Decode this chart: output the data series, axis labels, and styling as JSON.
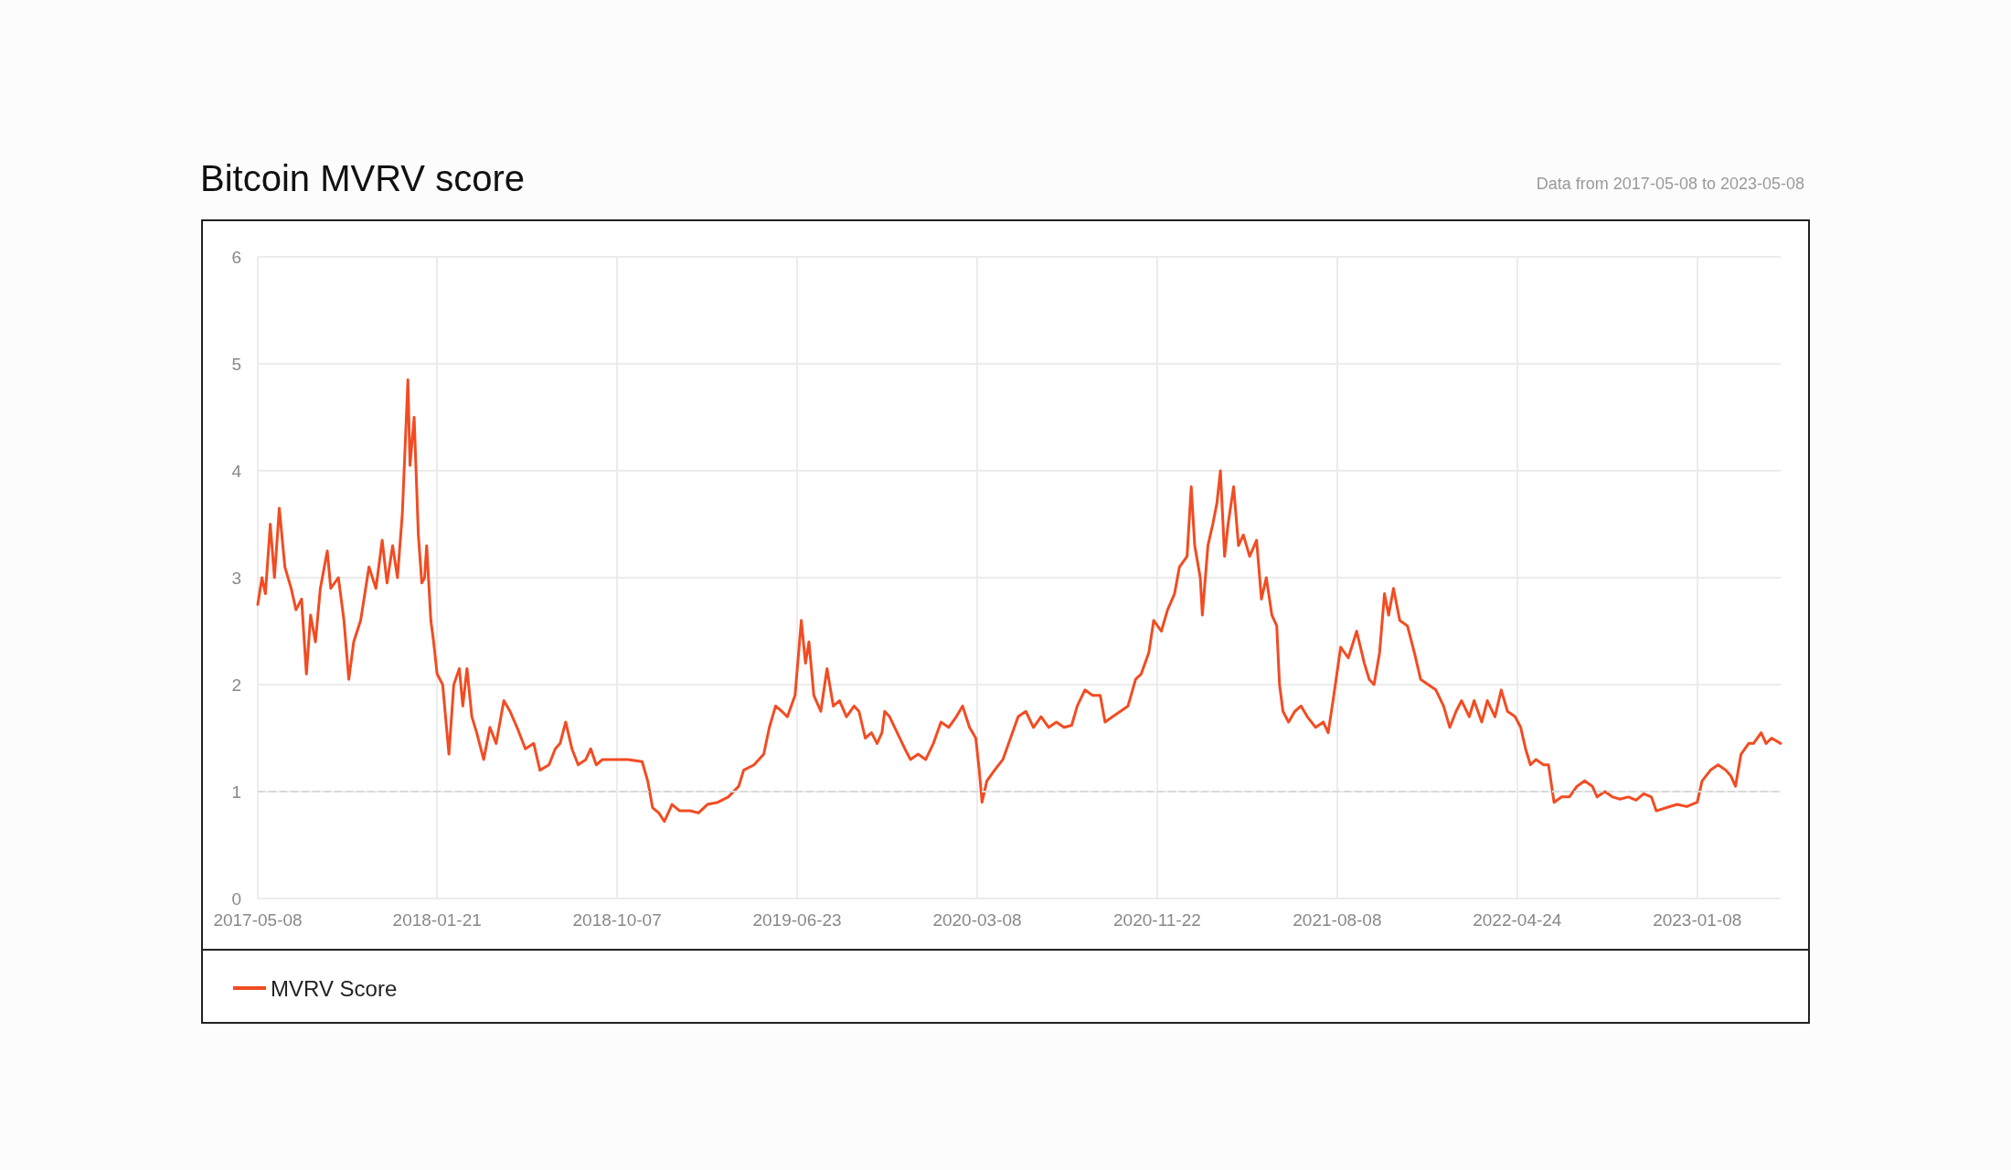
{
  "chart_data": {
    "type": "line",
    "title": "Bitcoin MVRV score",
    "annotations": [
      "Data from 2017-05-08 to 2023-05-08"
    ],
    "x": [
      "2017-05-08",
      "2017-05-14",
      "2017-05-19",
      "2017-05-26",
      "2017-06-01",
      "2017-06-08",
      "2017-06-16",
      "2017-06-25",
      "2017-07-02",
      "2017-07-10",
      "2017-07-17",
      "2017-07-23",
      "2017-07-30",
      "2017-08-06",
      "2017-08-16",
      "2017-08-21",
      "2017-09-01",
      "2017-09-09",
      "2017-09-16",
      "2017-09-23",
      "2017-10-03",
      "2017-10-15",
      "2017-10-25",
      "2017-11-03",
      "2017-11-10",
      "2017-11-18",
      "2017-11-25",
      "2017-12-02",
      "2017-12-10",
      "2017-12-13",
      "2017-12-19",
      "2017-12-25",
      "2017-12-30",
      "2018-01-03",
      "2018-01-06",
      "2018-01-12",
      "2018-01-16",
      "2018-01-21",
      "2018-01-29",
      "2018-02-07",
      "2018-02-14",
      "2018-02-22",
      "2018-02-27",
      "2018-03-05",
      "2018-03-12",
      "2018-03-19",
      "2018-03-29",
      "2018-04-07",
      "2018-04-16",
      "2018-04-27",
      "2018-05-06",
      "2018-05-16",
      "2018-05-28",
      "2018-06-09",
      "2018-06-18",
      "2018-07-01",
      "2018-07-10",
      "2018-07-17",
      "2018-07-25",
      "2018-08-03",
      "2018-08-12",
      "2018-08-23",
      "2018-08-30",
      "2018-09-07",
      "2018-09-16",
      "2018-10-01",
      "2018-10-23",
      "2018-11-12",
      "2018-11-20",
      "2018-11-27",
      "2018-12-06",
      "2018-12-14",
      "2018-12-25",
      "2019-01-05",
      "2019-01-20",
      "2019-02-01",
      "2019-02-14",
      "2019-03-01",
      "2019-03-16",
      "2019-03-31",
      "2019-04-07",
      "2019-04-22",
      "2019-05-06",
      "2019-05-14",
      "2019-05-23",
      "2019-06-01",
      "2019-06-09",
      "2019-06-20",
      "2019-06-29",
      "2019-07-05",
      "2019-07-10",
      "2019-07-17",
      "2019-07-27",
      "2019-08-05",
      "2019-08-14",
      "2019-08-23",
      "2019-09-02",
      "2019-09-13",
      "2019-09-20",
      "2019-09-29",
      "2019-10-08",
      "2019-10-16",
      "2019-10-23",
      "2019-10-27",
      "2019-11-03",
      "2019-11-14",
      "2019-11-25",
      "2019-12-03",
      "2019-12-14",
      "2019-12-25",
      "2020-01-05",
      "2020-01-16",
      "2020-01-27",
      "2020-02-07",
      "2020-02-16",
      "2020-02-26",
      "2020-03-06",
      "2020-03-11",
      "2020-03-15",
      "2020-03-22",
      "2020-04-02",
      "2020-04-14",
      "2020-04-25",
      "2020-05-06",
      "2020-05-17",
      "2020-05-28",
      "2020-06-08",
      "2020-06-19",
      "2020-06-30",
      "2020-07-11",
      "2020-07-22",
      "2020-07-30",
      "2020-08-10",
      "2020-08-21",
      "2020-09-01",
      "2020-09-08",
      "2020-09-19",
      "2020-09-30",
      "2020-10-11",
      "2020-10-22",
      "2020-10-30",
      "2020-11-10",
      "2020-11-17",
      "2020-11-28",
      "2020-12-07",
      "2020-12-17",
      "2020-12-24",
      "2021-01-04",
      "2021-01-10",
      "2021-01-15",
      "2021-01-23",
      "2021-01-26",
      "2021-02-03",
      "2021-02-10",
      "2021-02-16",
      "2021-02-21",
      "2021-02-27",
      "2021-03-04",
      "2021-03-12",
      "2021-03-19",
      "2021-03-26",
      "2021-04-04",
      "2021-04-14",
      "2021-04-21",
      "2021-04-28",
      "2021-05-06",
      "2021-05-13",
      "2021-05-17",
      "2021-05-22",
      "2021-05-30",
      "2021-06-08",
      "2021-06-17",
      "2021-06-26",
      "2021-07-08",
      "2021-07-19",
      "2021-07-26",
      "2021-08-02",
      "2021-08-13",
      "2021-08-24",
      "2021-09-05",
      "2021-09-16",
      "2021-09-23",
      "2021-09-30",
      "2021-10-08",
      "2021-10-15",
      "2021-10-21",
      "2021-10-28",
      "2021-11-06",
      "2021-11-17",
      "2021-11-27",
      "2021-12-06",
      "2021-12-17",
      "2021-12-28",
      "2022-01-08",
      "2022-01-17",
      "2022-01-26",
      "2022-02-03",
      "2022-02-14",
      "2022-02-21",
      "2022-03-04",
      "2022-03-12",
      "2022-03-23",
      "2022-04-01",
      "2022-04-10",
      "2022-04-21",
      "2022-04-29",
      "2022-05-06",
      "2022-05-13",
      "2022-05-21",
      "2022-06-01",
      "2022-06-08",
      "2022-06-16",
      "2022-06-27",
      "2022-07-08",
      "2022-07-19",
      "2022-07-30",
      "2022-08-10",
      "2022-08-17",
      "2022-08-28",
      "2022-09-08",
      "2022-09-19",
      "2022-10-01",
      "2022-10-12",
      "2022-10-23",
      "2022-11-03",
      "2022-11-10",
      "2022-11-25",
      "2022-12-10",
      "2022-12-24",
      "2023-01-08",
      "2023-01-15",
      "2023-01-27",
      "2023-02-07",
      "2023-02-18",
      "2023-02-25",
      "2023-03-04",
      "2023-03-12",
      "2023-03-23",
      "2023-03-30",
      "2023-04-10",
      "2023-04-17",
      "2023-04-25",
      "2023-05-08"
    ],
    "series": [
      {
        "name": "MVRV Score",
        "color": "#f24c22",
        "values": [
          2.75,
          3.0,
          2.85,
          3.5,
          3.0,
          3.65,
          3.1,
          2.9,
          2.7,
          2.8,
          2.1,
          2.65,
          2.4,
          2.9,
          3.25,
          2.9,
          3.0,
          2.6,
          2.05,
          2.4,
          2.6,
          3.1,
          2.9,
          3.35,
          2.95,
          3.3,
          3.0,
          3.6,
          4.85,
          4.05,
          4.5,
          3.4,
          2.95,
          3.0,
          3.3,
          2.6,
          2.4,
          2.1,
          2.0,
          1.35,
          2.0,
          2.15,
          1.8,
          2.15,
          1.7,
          1.55,
          1.3,
          1.6,
          1.45,
          1.85,
          1.75,
          1.6,
          1.4,
          1.45,
          1.2,
          1.25,
          1.4,
          1.45,
          1.65,
          1.4,
          1.25,
          1.3,
          1.4,
          1.25,
          1.3,
          1.3,
          1.3,
          1.28,
          1.1,
          0.85,
          0.8,
          0.72,
          0.88,
          0.82,
          0.82,
          0.8,
          0.88,
          0.9,
          0.95,
          1.05,
          1.2,
          1.25,
          1.35,
          1.6,
          1.8,
          1.75,
          1.7,
          1.9,
          2.6,
          2.2,
          2.4,
          1.9,
          1.75,
          2.15,
          1.8,
          1.85,
          1.7,
          1.8,
          1.75,
          1.5,
          1.55,
          1.45,
          1.55,
          1.75,
          1.7,
          1.55,
          1.4,
          1.3,
          1.35,
          1.3,
          1.45,
          1.65,
          1.6,
          1.7,
          1.8,
          1.6,
          1.5,
          1.2,
          0.9,
          1.1,
          1.2,
          1.3,
          1.5,
          1.7,
          1.75,
          1.6,
          1.7,
          1.6,
          1.65,
          1.6,
          1.62,
          1.8,
          1.95,
          1.9,
          1.9,
          1.65,
          1.7,
          1.75,
          1.8,
          2.05,
          2.1,
          2.3,
          2.6,
          2.5,
          2.7,
          2.85,
          3.1,
          3.2,
          3.85,
          3.3,
          3.0,
          2.65,
          3.3,
          3.5,
          3.7,
          4.0,
          3.2,
          3.5,
          3.85,
          3.3,
          3.4,
          3.2,
          3.35,
          2.8,
          3.0,
          2.65,
          2.55,
          2.0,
          1.75,
          1.65,
          1.75,
          1.8,
          1.7,
          1.6,
          1.65,
          1.55,
          1.85,
          2.35,
          2.25,
          2.5,
          2.2,
          2.05,
          2.0,
          2.3,
          2.85,
          2.65,
          2.9,
          2.6,
          2.55,
          2.3,
          2.05,
          2.0,
          1.95,
          1.8,
          1.6,
          1.75,
          1.85,
          1.7,
          1.85,
          1.65,
          1.85,
          1.7,
          1.95,
          1.75,
          1.7,
          1.6,
          1.4,
          1.25,
          1.3,
          1.25,
          1.25,
          0.9,
          0.95,
          0.95,
          1.05,
          1.1,
          1.05,
          0.95,
          1.0,
          0.95,
          0.93,
          0.95,
          0.92,
          0.98,
          0.95,
          0.82,
          0.85,
          0.88,
          0.86,
          0.9,
          1.1,
          1.2,
          1.25,
          1.2,
          1.15,
          1.05,
          1.35,
          1.45,
          1.45,
          1.55,
          1.45,
          1.5,
          1.45
        ]
      }
    ],
    "xlim": [
      "2017-05-08",
      "2023-05-08"
    ],
    "xticks": [
      "2017-05-08",
      "2018-01-21",
      "2018-10-07",
      "2019-06-23",
      "2020-03-08",
      "2020-11-22",
      "2021-08-08",
      "2022-04-24",
      "2023-01-08"
    ],
    "ylim": [
      0,
      6
    ],
    "yticks": [
      0,
      1,
      2,
      3,
      4,
      5,
      6
    ],
    "ref_lines": [
      {
        "axis": "y",
        "value": 1,
        "color": "#d9d9d9",
        "line_style": "dashed"
      }
    ],
    "grid": true,
    "legend": "bottom left",
    "marker": "none",
    "line_style": "solid"
  }
}
